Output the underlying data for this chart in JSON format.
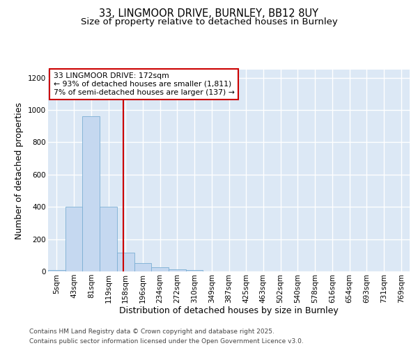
{
  "title_line1": "33, LINGMOOR DRIVE, BURNLEY, BB12 8UY",
  "title_line2": "Size of property relative to detached houses in Burnley",
  "xlabel": "Distribution of detached houses by size in Burnley",
  "ylabel": "Number of detached properties",
  "bin_labels": [
    "5sqm",
    "43sqm",
    "81sqm",
    "119sqm",
    "158sqm",
    "196sqm",
    "234sqm",
    "272sqm",
    "310sqm",
    "349sqm",
    "387sqm",
    "425sqm",
    "463sqm",
    "502sqm",
    "540sqm",
    "578sqm",
    "616sqm",
    "654sqm",
    "693sqm",
    "731sqm",
    "769sqm"
  ],
  "bar_heights": [
    10,
    400,
    960,
    400,
    115,
    50,
    25,
    15,
    10,
    0,
    0,
    0,
    0,
    0,
    0,
    0,
    0,
    0,
    0,
    0,
    0
  ],
  "bar_color": "#c5d8f0",
  "bar_edgecolor": "#7bafd4",
  "vline_color": "#cc0000",
  "annotation_text": "33 LINGMOOR DRIVE: 172sqm\n← 93% of detached houses are smaller (1,811)\n7% of semi-detached houses are larger (137) →",
  "annotation_box_color": "#cc0000",
  "annotation_bg": "#ffffff",
  "ylim": [
    0,
    1250
  ],
  "yticks": [
    0,
    200,
    400,
    600,
    800,
    1000,
    1200
  ],
  "footnote1": "Contains HM Land Registry data © Crown copyright and database right 2025.",
  "footnote2": "Contains public sector information licensed under the Open Government Licence v3.0.",
  "fig_bg_color": "#ffffff",
  "plot_bg_color": "#dce8f5",
  "grid_color": "#ffffff",
  "title_fontsize": 10.5,
  "subtitle_fontsize": 9.5,
  "axis_label_fontsize": 9,
  "tick_fontsize": 7.5,
  "footnote_fontsize": 6.5
}
